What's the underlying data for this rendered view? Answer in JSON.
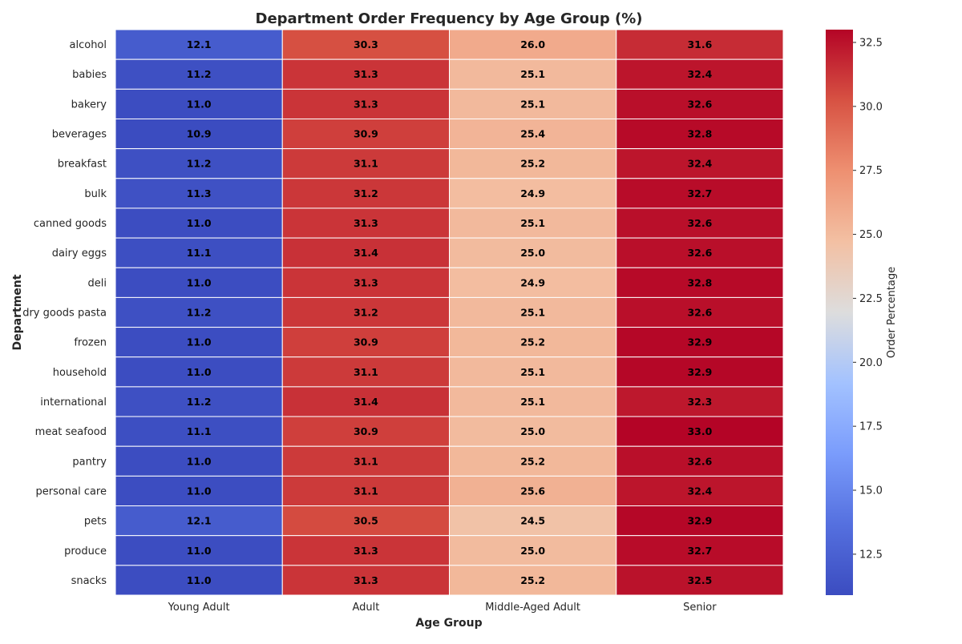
{
  "chart_data": {
    "type": "heatmap",
    "title": "Department Order Frequency by Age Group (%)",
    "xlabel": "Age Group",
    "ylabel": "Department",
    "colorbar_label": "Order Percentage",
    "colormap": "coolwarm",
    "value_range": [
      10.9,
      33.0
    ],
    "colorbar_ticks": [
      "12.5",
      "15.0",
      "17.5",
      "20.0",
      "22.5",
      "25.0",
      "27.5",
      "30.0",
      "32.5"
    ],
    "columns": [
      "Young Adult",
      "Adult",
      "Middle-Aged Adult",
      "Senior"
    ],
    "rows": [
      "alcohol",
      "babies",
      "bakery",
      "beverages",
      "breakfast",
      "bulk",
      "canned goods",
      "dairy eggs",
      "deli",
      "dry goods pasta",
      "frozen",
      "household",
      "international",
      "meat seafood",
      "pantry",
      "personal care",
      "pets",
      "produce",
      "snacks"
    ],
    "values": [
      [
        12.1,
        30.3,
        26.0,
        31.6
      ],
      [
        11.2,
        31.3,
        25.1,
        32.4
      ],
      [
        11.0,
        31.3,
        25.1,
        32.6
      ],
      [
        10.9,
        30.9,
        25.4,
        32.8
      ],
      [
        11.2,
        31.1,
        25.2,
        32.4
      ],
      [
        11.3,
        31.2,
        24.9,
        32.7
      ],
      [
        11.0,
        31.3,
        25.1,
        32.6
      ],
      [
        11.1,
        31.4,
        25.0,
        32.6
      ],
      [
        11.0,
        31.3,
        24.9,
        32.8
      ],
      [
        11.2,
        31.2,
        25.1,
        32.6
      ],
      [
        11.0,
        30.9,
        25.2,
        32.9
      ],
      [
        11.0,
        31.1,
        25.1,
        32.9
      ],
      [
        11.2,
        31.4,
        25.1,
        32.3
      ],
      [
        11.1,
        30.9,
        25.0,
        33.0
      ],
      [
        11.0,
        31.1,
        25.2,
        32.6
      ],
      [
        11.0,
        31.1,
        25.6,
        32.4
      ],
      [
        12.1,
        30.5,
        24.5,
        32.9
      ],
      [
        11.0,
        31.3,
        25.0,
        32.7
      ],
      [
        11.0,
        31.3,
        25.2,
        32.5
      ]
    ],
    "grid": true
  }
}
